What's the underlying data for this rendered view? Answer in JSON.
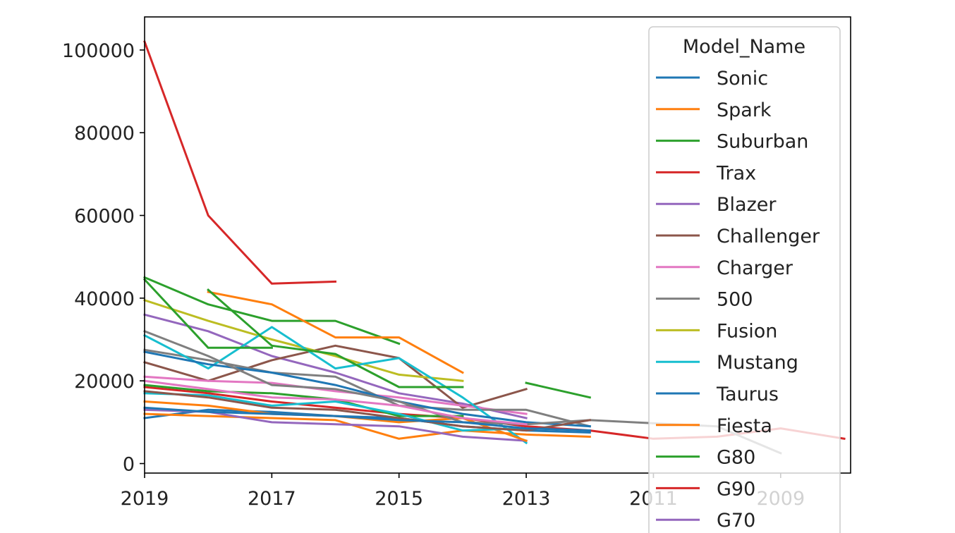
{
  "chart_data": {
    "type": "line",
    "title": "",
    "xlabel": "",
    "ylabel": "",
    "x_axis_inverted": true,
    "xlim": [
      2019,
      2007.9
    ],
    "ylim": [
      -2300,
      108000
    ],
    "x_ticks": [
      2019,
      2017,
      2015,
      2013,
      2011,
      2009
    ],
    "y_ticks": [
      0,
      20000,
      40000,
      60000,
      80000,
      100000
    ],
    "grid": false,
    "legend": {
      "title": "Model_Name",
      "placement": "upper right",
      "entries": [
        "Sonic",
        "Spark",
        "Suburban",
        "Trax",
        "Blazer",
        "Challenger",
        "Charger",
        "500",
        "Fusion",
        "Mustang",
        "Taurus",
        "Fiesta",
        "G80",
        "G90",
        "G70"
      ]
    },
    "series": [
      {
        "name": "Sonic",
        "color": "#1f77b4",
        "x": [
          2019,
          2018,
          2017,
          2016,
          2015,
          2014,
          2013,
          2012
        ],
        "y": [
          11000,
          13000,
          12500,
          11500,
          11000,
          9000,
          8000,
          7500
        ]
      },
      {
        "name": "Spark",
        "color": "#ff7f0e",
        "x": [
          2019,
          2018,
          2017,
          2016,
          2015,
          2014,
          2013,
          2012
        ],
        "y": [
          12000,
          11500,
          11000,
          10500,
          6000,
          8000,
          7000,
          6500
        ]
      },
      {
        "name": "Suburban",
        "color": "#2ca02c",
        "x": [
          2019,
          2018,
          2017,
          2016,
          2015
        ],
        "y": [
          45000,
          38500,
          34500,
          34500,
          29000
        ]
      },
      {
        "name": "Trax",
        "color": "#d62728",
        "x": [
          2019,
          2018,
          2017,
          2016
        ],
        "y": [
          102000,
          60000,
          43500,
          44000
        ]
      },
      {
        "name": "Blazer",
        "color": "#9467bd",
        "x": [
          2019,
          2018,
          2017,
          2016,
          2015,
          2014,
          2013
        ],
        "y": [
          36000,
          32000,
          26000,
          22000,
          17000,
          14500,
          11000
        ]
      },
      {
        "name": "Challenger",
        "color": "#8c564b",
        "x": [
          2019,
          2018,
          2017,
          2016,
          2015,
          2014,
          2013
        ],
        "y": [
          24500,
          20000,
          25000,
          28500,
          25500,
          13500,
          18000
        ]
      },
      {
        "name": "Charger",
        "color": "#e377c2",
        "x": [
          2019,
          2018,
          2017,
          2016,
          2015,
          2014,
          2013
        ],
        "y": [
          21000,
          20000,
          19500,
          17500,
          16000,
          14000,
          12000
        ]
      },
      {
        "name": "500",
        "color": "#7f7f7f",
        "x": [
          2019,
          2018,
          2017,
          2016,
          2015,
          2014,
          2013,
          2012
        ],
        "y": [
          27500,
          25000,
          22000,
          21000,
          14000,
          13000,
          13000,
          9000
        ]
      },
      {
        "name": "Fusion",
        "color": "#bcbd22",
        "x": [
          2019,
          2018,
          2017,
          2016,
          2015,
          2014
        ],
        "y": [
          39500,
          34500,
          30000,
          26000,
          21500,
          20000
        ]
      },
      {
        "name": "Mustang",
        "color": "#17becf",
        "x": [
          2019,
          2018,
          2017,
          2016,
          2015,
          2014,
          2013
        ],
        "y": [
          31000,
          23000,
          33000,
          23000,
          25500,
          16000,
          5000
        ]
      },
      {
        "name": "Taurus",
        "color": "#1f77b4",
        "x": [
          2019,
          2018,
          2017,
          2016,
          2015,
          2014,
          2013,
          2012
        ],
        "y": [
          27000,
          24000,
          22000,
          19000,
          15000,
          12000,
          10000,
          9000
        ]
      },
      {
        "name": "Fiesta",
        "color": "#ff7f0e",
        "x": [
          2018,
          2017,
          2016,
          2015,
          2014
        ],
        "y": [
          41500,
          38500,
          30500,
          30500,
          22000
        ]
      },
      {
        "name": "G80",
        "color": "#2ca02c",
        "x": [
          2019,
          2018,
          2017
        ],
        "y": [
          44500,
          28000,
          28000
        ]
      },
      {
        "name": "G90",
        "color": "#d62728",
        "x": [
          2019,
          2018,
          2017,
          2016,
          2015,
          2014,
          2013,
          2012,
          2011,
          2010,
          2009,
          2008
        ],
        "y": [
          18500,
          17000,
          15000,
          13500,
          12000,
          11000,
          9000,
          8000,
          6000,
          6500,
          8500,
          6000
        ]
      },
      {
        "name": "G70",
        "color": "#9467bd",
        "x": [
          2019,
          2018,
          2017,
          2016,
          2015,
          2014,
          2013
        ],
        "y": [
          13000,
          12500,
          10000,
          9500,
          9000,
          6500,
          5500
        ]
      },
      {
        "color": "#2ca02c",
        "x": [
          2018,
          2017,
          2016,
          2015,
          2014
        ],
        "y": [
          42000,
          28500,
          26500,
          18500,
          18500
        ]
      },
      {
        "color": "#2ca02c",
        "x": [
          2013,
          2012
        ],
        "y": [
          19500,
          16000
        ]
      },
      {
        "color": "#2ca02c",
        "x": [
          2019,
          2018,
          2017,
          2016,
          2015,
          2014
        ],
        "y": [
          19000,
          17500,
          17000,
          15500,
          11500,
          11500
        ]
      },
      {
        "color": "#ff7f0e",
        "x": [
          2019,
          2018,
          2017,
          2016,
          2015,
          2014,
          2013
        ],
        "y": [
          15000,
          14000,
          12000,
          11500,
          10000,
          11000,
          5500
        ]
      },
      {
        "color": "#17becf",
        "x": [
          2019,
          2018,
          2017,
          2016,
          2015,
          2014,
          2013
        ],
        "y": [
          17000,
          16500,
          14000,
          15000,
          12000,
          8000,
          8500
        ]
      },
      {
        "color": "#7f7f7f",
        "x": [
          2019,
          2018,
          2017,
          2016,
          2015,
          2014,
          2013,
          2012,
          2010,
          2009
        ],
        "y": [
          32000,
          26000,
          19000,
          18000,
          15000,
          10000,
          9500,
          10500,
          9000,
          2500
        ]
      },
      {
        "color": "#8c564b",
        "x": [
          2019,
          2018,
          2017,
          2016,
          2015,
          2014,
          2013,
          2012
        ],
        "y": [
          17500,
          16000,
          13500,
          13000,
          11000,
          9000,
          8000,
          10500
        ]
      },
      {
        "color": "#e377c2",
        "x": [
          2019,
          2018,
          2017,
          2016,
          2015,
          2014,
          2013
        ],
        "y": [
          20000,
          18000,
          16000,
          15500,
          14000,
          11000,
          9500
        ]
      },
      {
        "color": "#1f77b4",
        "x": [
          2019,
          2018,
          2017,
          2016,
          2015,
          2014,
          2013,
          2012
        ],
        "y": [
          13500,
          12500,
          12000,
          11500,
          10500,
          10000,
          8500,
          8000
        ]
      }
    ]
  }
}
